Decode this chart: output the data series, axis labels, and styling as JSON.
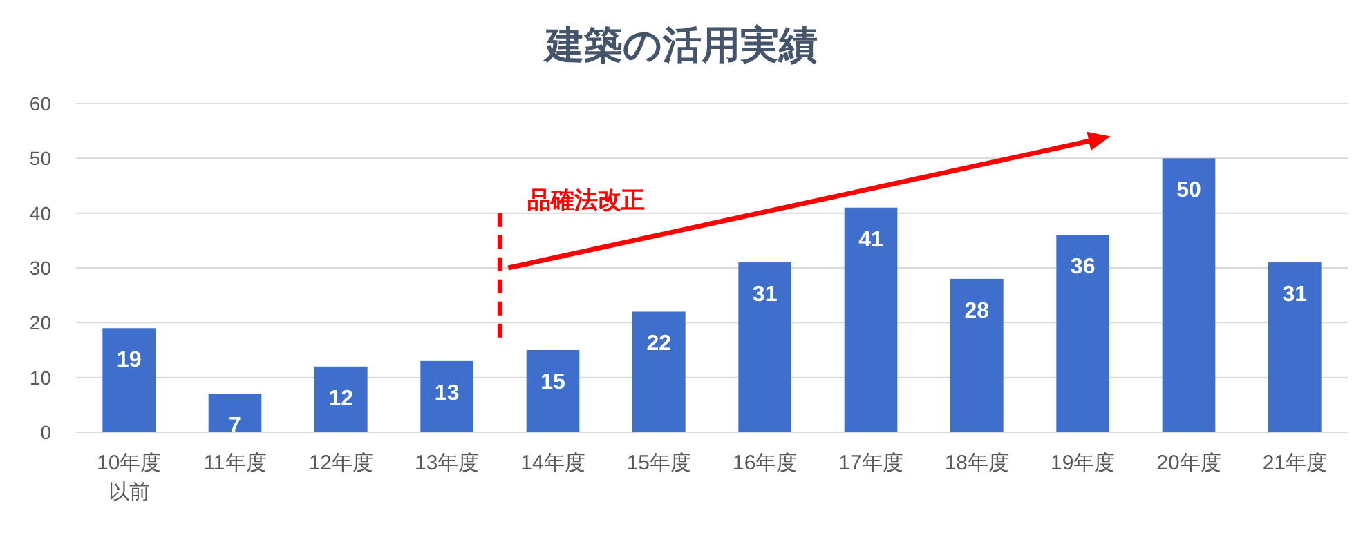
{
  "chart_data": {
    "type": "bar",
    "title": "建築の活用実績",
    "categories": [
      "10年度以前",
      "11年度",
      "12年度",
      "13年度",
      "14年度",
      "15年度",
      "16年度",
      "17年度",
      "18年度",
      "19年度",
      "20年度",
      "21年度"
    ],
    "values": [
      19,
      7,
      12,
      13,
      15,
      22,
      31,
      41,
      28,
      36,
      50,
      31
    ],
    "color": "#3f6fcc",
    "ylim": [
      0,
      60
    ],
    "yticks": [
      0,
      10,
      20,
      30,
      40,
      50,
      60
    ],
    "grid": "y",
    "data_labels": true,
    "annotations": [
      "品確法改正"
    ]
  }
}
